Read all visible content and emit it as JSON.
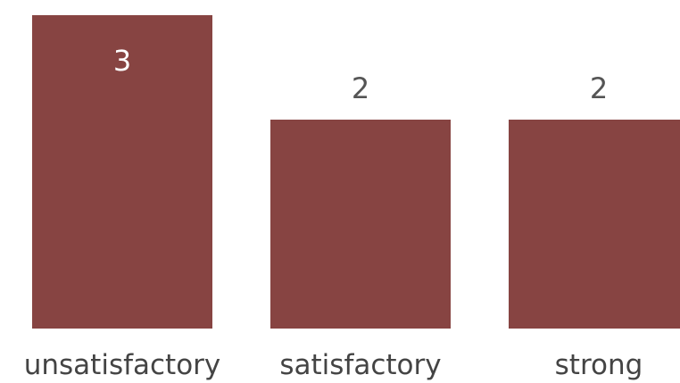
{
  "chart_data": {
    "type": "bar",
    "categories": [
      "unsatisfactory",
      "satisfactory",
      "strong"
    ],
    "values": [
      3,
      2,
      2
    ],
    "value_labels": [
      "3",
      "2",
      "2"
    ],
    "ylim": [
      0,
      3
    ],
    "grid": false,
    "bar_color": "#874442"
  }
}
